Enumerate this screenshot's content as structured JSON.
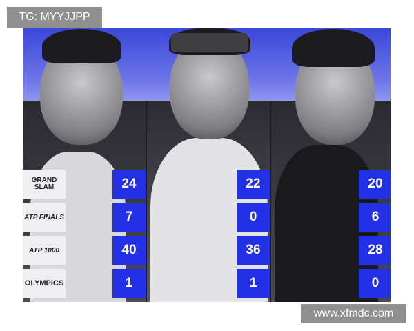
{
  "watermarks": {
    "top_left": "TG: MYYJJPP",
    "bottom_right": "www.xfmdc.com"
  },
  "categories": [
    {
      "label": "GRAND SLAM",
      "icon": "grand-slam-logo"
    },
    {
      "label": "ATP FINALS",
      "icon": "atp-finals-logo"
    },
    {
      "label": "ATP 1000",
      "icon": "atp-masters-1000-logo"
    },
    {
      "label": "OLYMPICS",
      "icon": "olympics-logo"
    }
  ],
  "players": [
    {
      "stats": [
        "24",
        "7",
        "40",
        "1"
      ]
    },
    {
      "stats": [
        "22",
        "0",
        "36",
        "1"
      ]
    },
    {
      "stats": [
        "20",
        "6",
        "28",
        "0"
      ]
    }
  ],
  "colors": {
    "accent": "#2330e6",
    "band": "#5a64e4"
  }
}
